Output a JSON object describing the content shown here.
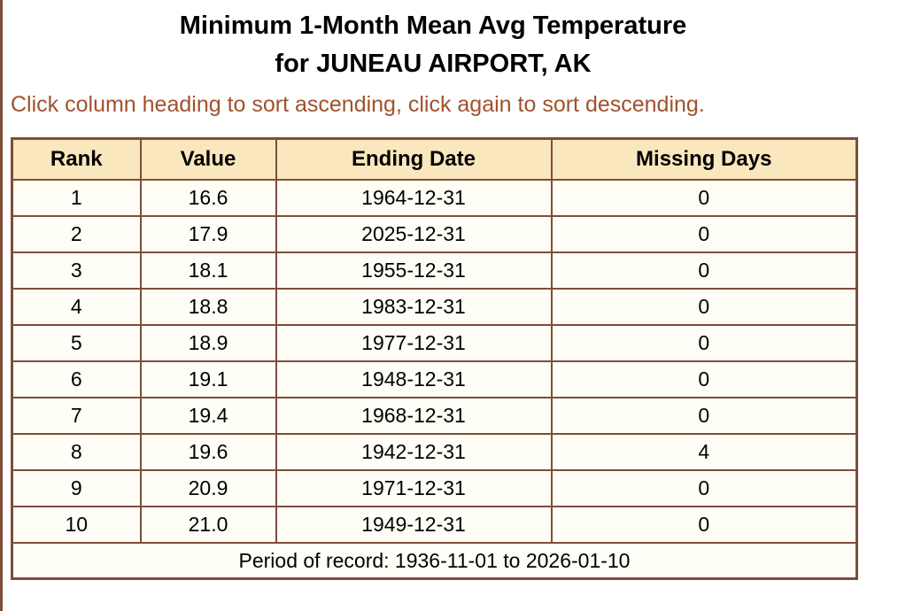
{
  "title": {
    "line1": "Minimum 1-Month Mean Avg Temperature",
    "line2": "for JUNEAU AIRPORT, AK"
  },
  "subtitle": "Click column heading to sort ascending, click again to sort descending.",
  "table": {
    "columns": [
      "Rank",
      "Value",
      "Ending Date",
      "Missing Days"
    ],
    "rows": [
      [
        "1",
        "16.6",
        "1964-12-31",
        "0"
      ],
      [
        "2",
        "17.9",
        "2025-12-31",
        "0"
      ],
      [
        "3",
        "18.1",
        "1955-12-31",
        "0"
      ],
      [
        "4",
        "18.8",
        "1983-12-31",
        "0"
      ],
      [
        "5",
        "18.9",
        "1977-12-31",
        "0"
      ],
      [
        "6",
        "19.1",
        "1948-12-31",
        "0"
      ],
      [
        "7",
        "19.4",
        "1968-12-31",
        "0"
      ],
      [
        "8",
        "19.6",
        "1942-12-31",
        "4"
      ],
      [
        "9",
        "20.9",
        "1971-12-31",
        "0"
      ],
      [
        "10",
        "21.0",
        "1949-12-31",
        "0"
      ]
    ],
    "footer": "Period of record: 1936-11-01 to 2026-01-10"
  },
  "chart_data": {
    "type": "table",
    "title": "Minimum 1-Month Mean Avg Temperature for JUNEAU AIRPORT, AK",
    "columns": [
      "Rank",
      "Value",
      "Ending Date",
      "Missing Days"
    ],
    "rows": [
      [
        1,
        16.6,
        "1964-12-31",
        0
      ],
      [
        2,
        17.9,
        "2025-12-31",
        0
      ],
      [
        3,
        18.1,
        "1955-12-31",
        0
      ],
      [
        4,
        18.8,
        "1983-12-31",
        0
      ],
      [
        5,
        18.9,
        "1977-12-31",
        0
      ],
      [
        6,
        19.1,
        "1948-12-31",
        0
      ],
      [
        7,
        19.4,
        "1968-12-31",
        0
      ],
      [
        8,
        19.6,
        "1942-12-31",
        4
      ],
      [
        9,
        20.9,
        "1971-12-31",
        0
      ],
      [
        10,
        21.0,
        "1949-12-31",
        0
      ]
    ],
    "footnote": "Period of record: 1936-11-01 to 2026-01-10"
  },
  "colors": {
    "border_brown": "#7d4e38",
    "header_bg": "#FAE7BD",
    "cell_bg": "#FFFEF6",
    "subtitle_text": "#A0522D",
    "title_text": "#000000"
  }
}
